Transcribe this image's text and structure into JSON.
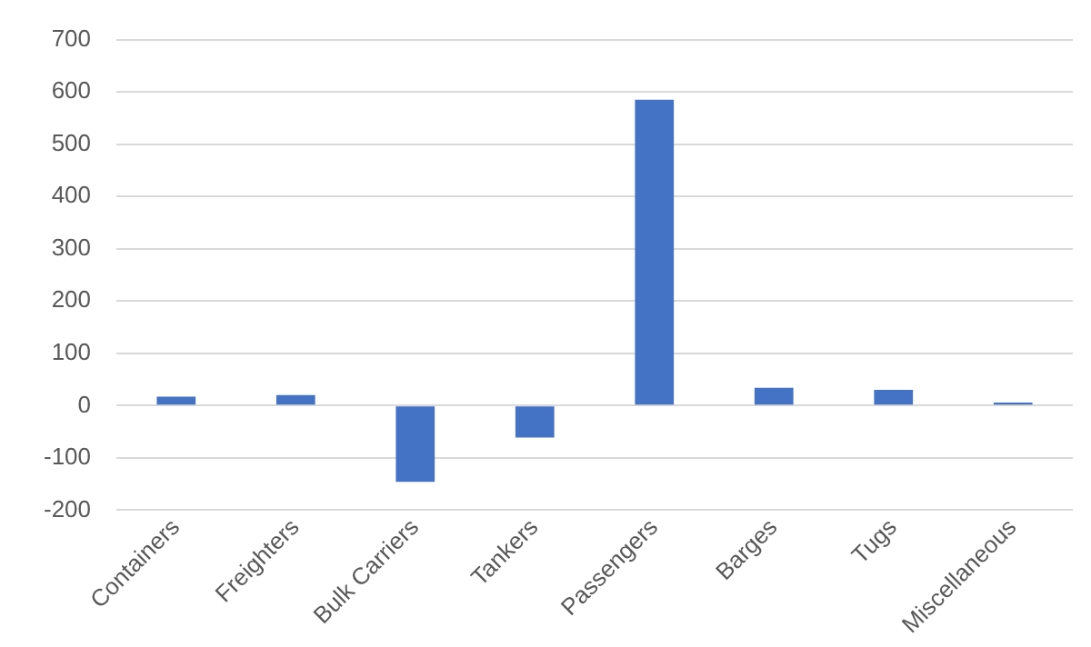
{
  "chart_data": {
    "type": "bar",
    "categories": [
      "Containers",
      "Freighters",
      "Bulk Carriers",
      "Tankers",
      "Passengers",
      "Barges",
      "Tugs",
      "Miscellaneous"
    ],
    "values": [
      17,
      20,
      -146,
      -61,
      585,
      34,
      30,
      6
    ],
    "color": "#4472c4",
    "ylim": [
      -200,
      700
    ],
    "yticks": [
      -200,
      -100,
      0,
      100,
      200,
      300,
      400,
      500,
      600,
      700
    ],
    "grid": "y",
    "legend": false
  }
}
